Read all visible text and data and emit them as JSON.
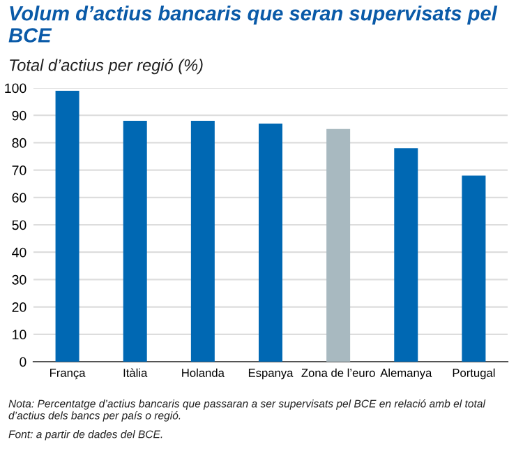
{
  "chart_data": {
    "type": "bar",
    "title": "Volum d’actius bancaris que seran supervisats pel BCE",
    "subtitle": "Total d’actius per regió (%)",
    "categories": [
      "França",
      "Itàlia",
      "Holanda",
      "Espanya",
      "Zona de l’euro",
      "Alemanya",
      "Portugal"
    ],
    "values": [
      99,
      88,
      88,
      87,
      85,
      78,
      68
    ],
    "colors": [
      "#0068b3",
      "#0068b3",
      "#0068b3",
      "#0068b3",
      "#a8b9c0",
      "#0068b3",
      "#0068b3"
    ],
    "ylim": [
      0,
      100
    ],
    "yticks": [
      0,
      10,
      20,
      30,
      40,
      50,
      60,
      70,
      80,
      90,
      100
    ],
    "grid": "y",
    "annotations": [
      "Nota: Percentatge d’actius bancaris que passaran a ser supervisats pel BCE en relació amb el total d’actius dels bancs per país o regió.",
      "Font: a partir de dades del BCE."
    ]
  }
}
